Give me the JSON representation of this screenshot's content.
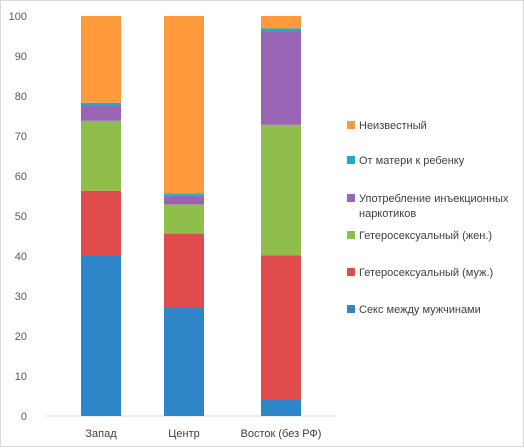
{
  "chart_data": {
    "type": "bar",
    "stacked": true,
    "categories": [
      "Запад",
      "Центр",
      "Восток (без РФ)"
    ],
    "ylim": [
      0,
      100
    ],
    "yticks": [
      0,
      10,
      20,
      30,
      40,
      50,
      60,
      70,
      80,
      90,
      100
    ],
    "grid": false,
    "legend_position": "right",
    "title": "",
    "xlabel": "",
    "ylabel": "",
    "series": [
      {
        "name": "Секс между мужчинами",
        "color": "#2e86c8",
        "values": [
          40,
          27,
          4
        ]
      },
      {
        "name": "Гетеросексуальный (муж.)",
        "color": "#e04c4c",
        "values": [
          16.3,
          18.6,
          36.2
        ]
      },
      {
        "name": "Гетеросексуальный (жен.)",
        "color": "#8fbf4a",
        "values": [
          17.5,
          7.3,
          32.6
        ]
      },
      {
        "name": "Употребление инъекционных наркотиков",
        "color": "#9a64b4",
        "values": [
          3.7,
          2.2,
          23.2
        ]
      },
      {
        "name": "От матери к ребенку",
        "color": "#1eaac8",
        "values": [
          0.8,
          0.5,
          0.9
        ]
      },
      {
        "name": "Неизвестный",
        "color": "#ff9a3c",
        "values": [
          21.7,
          44.4,
          3.1
        ]
      }
    ],
    "legend": [
      {
        "lines": [
          "Неизвестный"
        ],
        "color": "#ff9a3c"
      },
      {
        "lines": [
          "От матери к ребенку"
        ],
        "color": "#1eaac8"
      },
      {
        "lines": [
          "Употребление инъекционных",
          "наркотиков"
        ],
        "color": "#9a64b4"
      },
      {
        "lines": [
          "Гетеросексуальный (жен.)"
        ],
        "color": "#8fbf4a"
      },
      {
        "lines": [
          "Гетеросексуальный (муж.)"
        ],
        "color": "#e04c4c"
      },
      {
        "lines": [
          "Секс между мужчинами"
        ],
        "color": "#2e86c8"
      }
    ]
  }
}
